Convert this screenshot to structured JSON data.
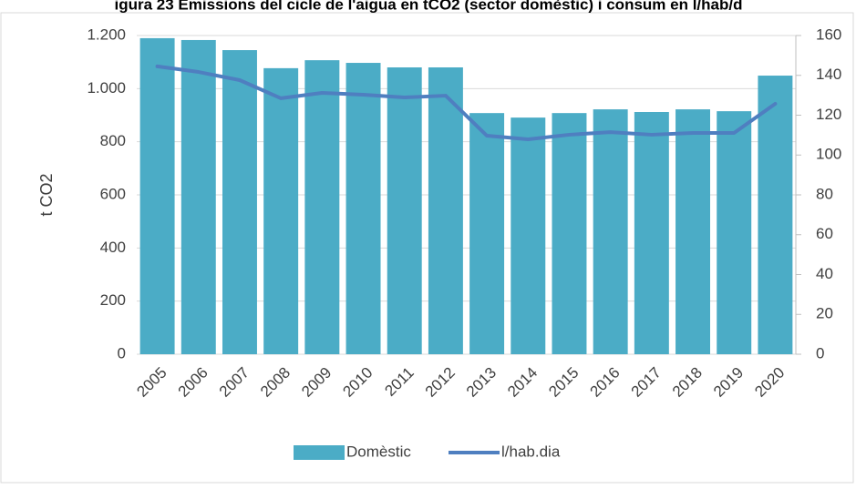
{
  "chart_data": {
    "type": "bar-line",
    "title": "igura 23 Emissions del cicle de l'aigua en tCO2 (sector domèstic) i consum en l/hab/d",
    "ylabel": "t CO2",
    "categories": [
      "2005",
      "2006",
      "2007",
      "2008",
      "2009",
      "2010",
      "2011",
      "2012",
      "2013",
      "2014",
      "2015",
      "2016",
      "2017",
      "2018",
      "2019",
      "2020"
    ],
    "series": [
      {
        "name": "Domèstic",
        "type": "bar",
        "color": "#4bacc6",
        "axis": "y",
        "values": [
          1190,
          1183,
          1145,
          1077,
          1107,
          1097,
          1080,
          1080,
          908,
          891,
          908,
          922,
          912,
          922,
          915,
          1049
        ]
      },
      {
        "name": "l/hab.dia",
        "type": "line",
        "color": "#4f7fc0",
        "axis": "y2",
        "values": [
          144.5,
          141.7,
          137.6,
          128.5,
          131.2,
          130.3,
          128.9,
          129.8,
          109.7,
          107.9,
          110.2,
          111.5,
          110.2,
          111.1,
          111.1,
          125.7
        ]
      }
    ],
    "ylim": [
      0,
      1200
    ],
    "yticks": [
      0,
      200,
      400,
      600,
      800,
      {
        "value": 1000,
        "label": "1.000"
      },
      {
        "value": 1200,
        "label": "1.200"
      }
    ],
    "y2lim": [
      0,
      160
    ],
    "y2ticks": [
      0,
      20,
      40,
      60,
      80,
      100,
      120,
      140,
      160
    ],
    "grid": true,
    "legend": "bottom"
  }
}
